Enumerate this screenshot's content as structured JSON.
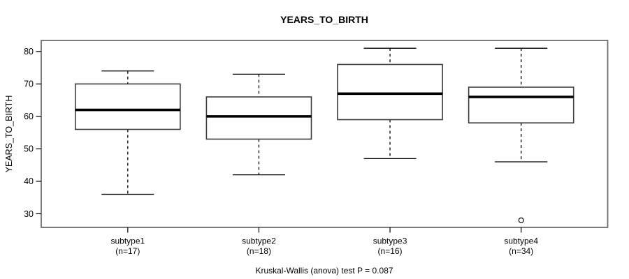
{
  "chart_data": {
    "type": "boxplot",
    "title": "YEARS_TO_BIRTH",
    "ylabel": "YEARS_TO_BIRTH",
    "xlabel": "",
    "caption": "Kruskal-Wallis (anova) test P = 0.087",
    "grid": false,
    "legend": null,
    "ylim": [
      25.8,
      83.4
    ],
    "yticks": [
      30,
      40,
      50,
      60,
      70,
      80
    ],
    "boxes": [
      {
        "label": "subtype1",
        "count_label": "(n=17)",
        "n": 17,
        "whisker_low": 36,
        "q1": 56,
        "median": 62,
        "q3": 70,
        "whisker_high": 74,
        "outliers": []
      },
      {
        "label": "subtype2",
        "count_label": "(n=18)",
        "n": 18,
        "whisker_low": 42,
        "q1": 53,
        "median": 60,
        "q3": 66,
        "whisker_high": 73,
        "outliers": []
      },
      {
        "label": "subtype3",
        "count_label": "(n=16)",
        "n": 16,
        "whisker_low": 47,
        "q1": 59,
        "median": 67,
        "q3": 76,
        "whisker_high": 81,
        "outliers": []
      },
      {
        "label": "subtype4",
        "count_label": "(n=34)",
        "n": 34,
        "whisker_low": 46,
        "q1": 58,
        "median": 66,
        "q3": 69,
        "whisker_high": 81,
        "outliers": [
          28
        ]
      }
    ],
    "colors": {
      "background": "#ffffff",
      "plot_border": "#6e6e6e",
      "box_stroke": "#3c3c3c",
      "box_fill": "#ffffff",
      "whisker": "#000000",
      "median": "#000000",
      "text": "#000000"
    }
  }
}
